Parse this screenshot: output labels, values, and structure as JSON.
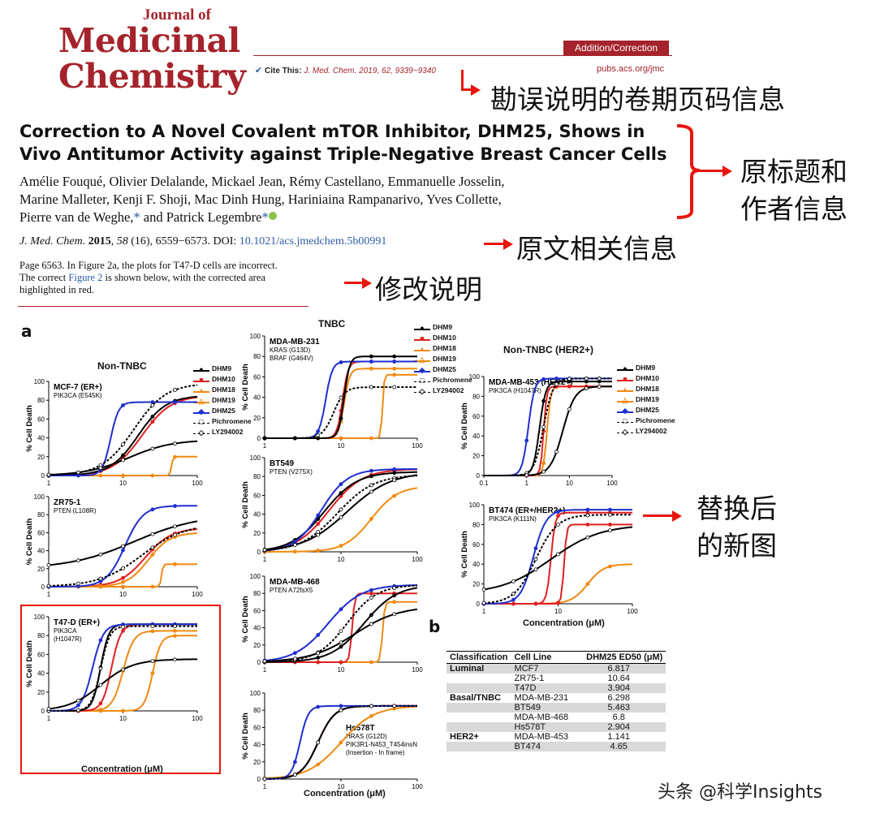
{
  "header": {
    "journal_of": "Journal of",
    "medicinal": "Medicinal",
    "chemistry": "Chemistry",
    "section_tag": "Addition/Correction",
    "cite_label": "Cite This:",
    "cite_text": "J. Med. Chem. 2019, 62, 9339−9340",
    "url": "pubs.acs.org/jmc"
  },
  "annotations": {
    "cite_note": "勘误说明的卷期页码信息",
    "title_note_1": "原标题和",
    "title_note_2": "作者信息",
    "ref_note": "原文相关信息",
    "change_note": "修改说明",
    "figure_note_1": "替换后",
    "figure_note_2": "的新图"
  },
  "article": {
    "title_line1": "Correction to A Novel Covalent mTOR Inhibitor, DHM25, Shows in",
    "title_line2": "Vivo Antitumor Activity against Triple-Negative Breast Cancer Cells",
    "authors_line1": "Amélie Fouqué, Olivier Delalande, Mickael Jean, Rémy Castellano, Emmanuelle Josselin,",
    "authors_line2": "Marine Malleter, Kenji F. Shoji, Mac Dinh Hung, Hariniaina Rampanarivo, Yves Collette,",
    "authors_line3a": "Pierre van de Weghe,",
    "authors_star1": "*",
    "authors_and": " and Patrick Legembre",
    "authors_star2": "*",
    "ref_journal": "J. Med. Chem.",
    "ref_year": "2015",
    "ref_vol": "58",
    "ref_rest": "(16), 6559−6573. DOI:",
    "ref_doi": "10.1021/acs.jmedchem.5b00991",
    "note_line1": "Page 6563. In Figure 2a, the plots for T47-D cells are incorrect.",
    "note_line2a": "The correct",
    "note_link": "Figure 2",
    "note_line2b": "is shown below, with the corrected area",
    "note_line3": "highlighted in red."
  },
  "figure": {
    "label_a": "a",
    "label_b": "b",
    "group_non_tnbc": "Non-TNBC",
    "group_tnbc": "TNBC",
    "group_her2": "Non-TNBC (HER2+)",
    "y_axis_title": "% Cell Death",
    "x_axis_title": "Concentration (μM)",
    "legend": [
      "DHM9",
      "DHM10",
      "DHM18",
      "DHM19",
      "DHM25",
      "Pichromene",
      "LY294002"
    ],
    "legend_colors": [
      "#000000",
      "#e02020",
      "#f08a12",
      "#f08a12",
      "#1f2fd0",
      "#000000",
      "#000000"
    ],
    "panels": {
      "mcf7": {
        "title": "MCF-7 (ER+)",
        "sub1": "PIK3CA (E545K)",
        "sub2": "",
        "sub3": ""
      },
      "zr751": {
        "title": "ZR75-1",
        "sub1": "PTEN (L108R)",
        "sub2": "",
        "sub3": ""
      },
      "t47d": {
        "title": "T47-D (ER+)",
        "sub1": "PIK3CA",
        "sub2": "(H1047R)",
        "sub3": ""
      },
      "mdamb231": {
        "title": "MDA-MB-231",
        "sub1": "KRAS (G13D)",
        "sub2": "BRAF (G464V)",
        "sub3": ""
      },
      "bt549": {
        "title": "BT549",
        "sub1": "PTEN (V275X)",
        "sub2": "",
        "sub3": ""
      },
      "mdamb468": {
        "title": "MDA-MB-468",
        "sub1": "PTEN A72fsX5",
        "sub2": "",
        "sub3": ""
      },
      "hs578t": {
        "title": "Hs578T",
        "sub1": "HRAS (G12D)",
        "sub2": "PIK3R1-N453_T454insN",
        "sub3": "(Insertion - In frame)"
      },
      "mdamb453": {
        "title": "MDA-MB-453 (HER2+)",
        "sub1": "PIK3CA (H1047R)",
        "sub2": "",
        "sub3": ""
      },
      "bt474": {
        "title": "BT474 (ER+/HER2+)",
        "sub1": "PIK3CA (K111N)",
        "sub2": "",
        "sub3": ""
      }
    },
    "table": {
      "headers": [
        "Classification",
        "Cell Line",
        "DHM25 ED50 (μM)"
      ],
      "rows": [
        {
          "cls": "Luminal",
          "line": "MCF7",
          "ed50": "6.817"
        },
        {
          "cls": "",
          "line": "ZR75-1",
          "ed50": "10.64"
        },
        {
          "cls": "",
          "line": "T47D",
          "ed50": "3.904"
        },
        {
          "cls": "Basal/TNBC",
          "line": "MDA-MB-231",
          "ed50": "6.298"
        },
        {
          "cls": "",
          "line": "BT549",
          "ed50": "5.463"
        },
        {
          "cls": "",
          "line": "MDA-MB-468",
          "ed50": "6.8"
        },
        {
          "cls": "",
          "line": "Hs578T",
          "ed50": "2.904"
        },
        {
          "cls": "HER2+",
          "line": "MDA-MB-453",
          "ed50": "1.141"
        },
        {
          "cls": "",
          "line": "BT474",
          "ed50": "4.65"
        }
      ]
    }
  },
  "watermark": "头条 @科学Insights"
}
